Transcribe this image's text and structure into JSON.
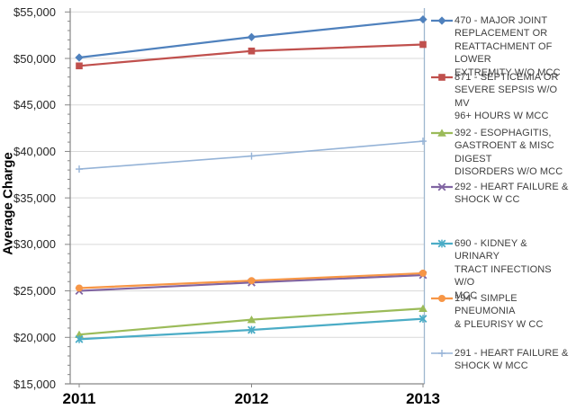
{
  "chart_data": {
    "type": "line",
    "title": "",
    "ylabel": "Average Charge",
    "xlabel": "",
    "categories": [
      "2011",
      "2012",
      "2013"
    ],
    "ylim": [
      15000,
      55000
    ],
    "ytick_interval": 5000,
    "yminor_tick_interval": 1000,
    "y_tick_labels": [
      "$15,000",
      "$20,000",
      "$25,000",
      "$30,000",
      "$35,000",
      "$40,000",
      "$45,000",
      "$50,000",
      "$55,000"
    ],
    "grid": true,
    "legend_position": "right",
    "series": [
      {
        "name": "470 - MAJOR JOINT REPLACEMENT OR REATTACHMENT OF LOWER EXTREMITY W/O MCC",
        "name_lines": [
          "470 - MAJOR JOINT",
          "REPLACEMENT OR",
          "REATTACHMENT OF LOWER",
          "EXTREMITY W/O MCC"
        ],
        "values": [
          50100,
          52300,
          54200
        ],
        "color": "#4F81BD",
        "marker": "diamond"
      },
      {
        "name": "871 - SEPTICEMIA OR SEVERE SEPSIS W/O MV 96+ HOURS W MCC",
        "name_lines": [
          "871 - SEPTICEMIA OR",
          "SEVERE SEPSIS W/O MV",
          "96+ HOURS W MCC"
        ],
        "values": [
          49200,
          50800,
          51500
        ],
        "color": "#C0504D",
        "marker": "square"
      },
      {
        "name": "392 - ESOPHAGITIS, GASTROENT & MISC DIGEST DISORDERS W/O MCC",
        "name_lines": [
          "392 - ESOPHAGITIS,",
          "GASTROENT & MISC DIGEST",
          "DISORDERS W/O MCC"
        ],
        "values": [
          20300,
          21900,
          23100
        ],
        "color": "#9BBB59",
        "marker": "triangle"
      },
      {
        "name": "292 - HEART FAILURE & SHOCK W CC",
        "name_lines": [
          "292 - HEART FAILURE &",
          "SHOCK W CC"
        ],
        "values": [
          25000,
          25900,
          26700
        ],
        "color": "#8064A2",
        "marker": "x"
      },
      {
        "name": "690 - KIDNEY & URINARY TRACT INFECTIONS W/O MCC",
        "name_lines": [
          "690 - KIDNEY & URINARY",
          "TRACT INFECTIONS W/O",
          "MCC"
        ],
        "values": [
          19800,
          20800,
          22000
        ],
        "color": "#4BACC6",
        "marker": "asterisk"
      },
      {
        "name": "194 - SIMPLE PNEUMONIA & PLEURISY W CC",
        "name_lines": [
          "194 - SIMPLE PNEUMONIA",
          "& PLEURISY W CC"
        ],
        "values": [
          25300,
          26100,
          26900
        ],
        "color": "#F79646",
        "marker": "circle"
      },
      {
        "name": "291 - HEART FAILURE & SHOCK W MCC",
        "name_lines": [
          "291 - HEART FAILURE &",
          "SHOCK W MCC"
        ],
        "values": [
          38100,
          39500,
          41100
        ],
        "color": "#95B3D7",
        "marker": "plus"
      }
    ]
  },
  "colors": {
    "gridline": "#D9D9D9",
    "axis": "#868686",
    "plot_right_border": "#9EB6CE",
    "tick_label": "#262626",
    "legend_text": "#3F3F3F",
    "background": "#FFFFFF"
  }
}
